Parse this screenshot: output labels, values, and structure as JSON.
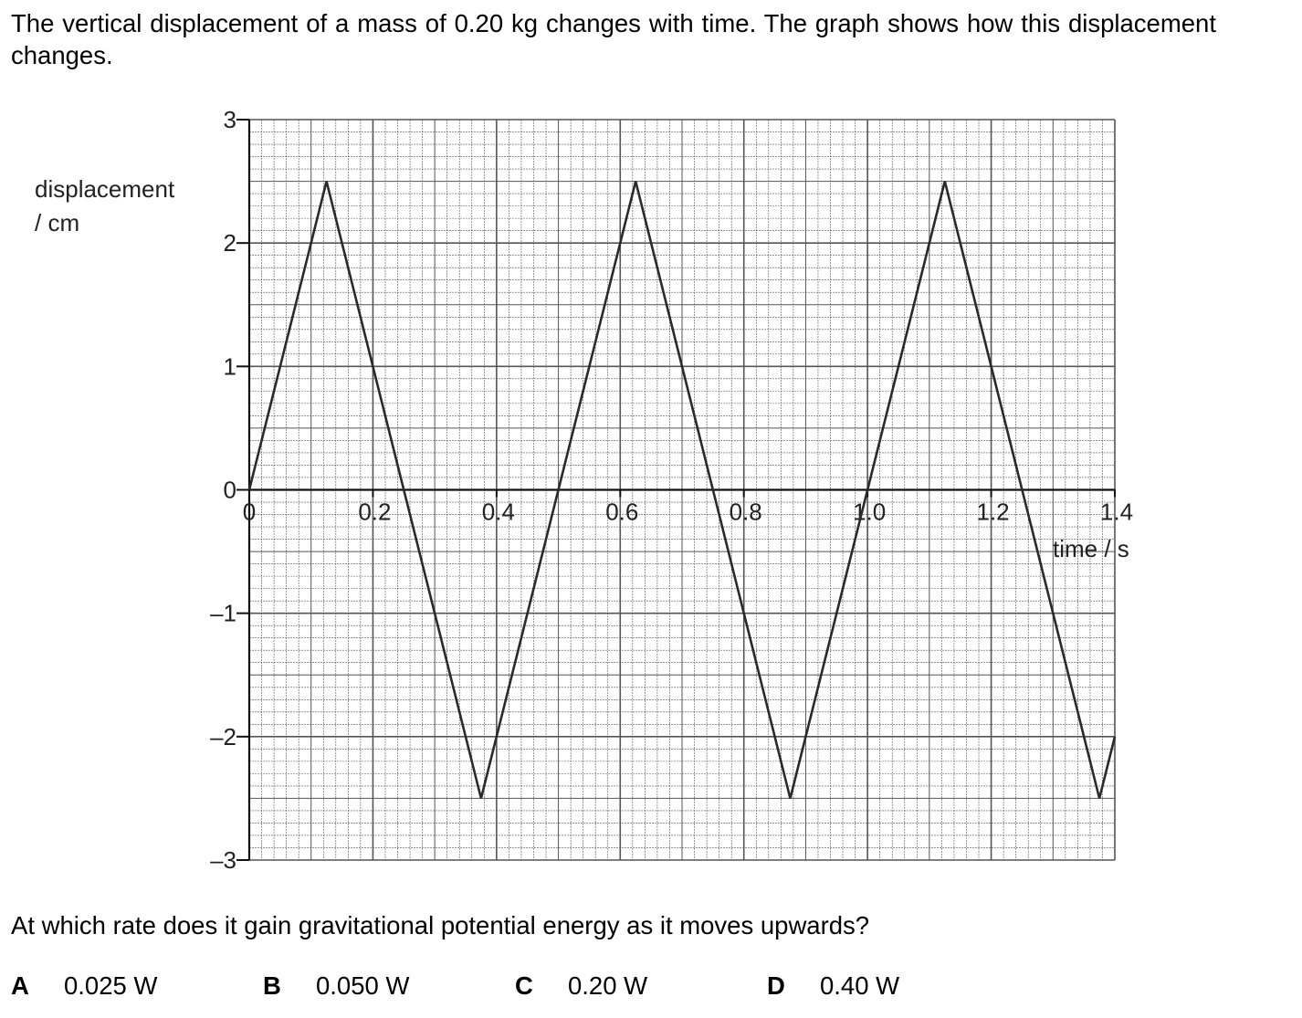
{
  "question": {
    "intro": "The vertical displacement of a mass of 0.20 kg changes with time. The graph shows how this displacement changes.",
    "prompt": "At which rate does it gain gravitational potential energy as it moves upwards?",
    "options": [
      {
        "letter": "A",
        "text": "0.025 W"
      },
      {
        "letter": "B",
        "text": "0.050 W"
      },
      {
        "letter": "C",
        "text": "0.20 W"
      },
      {
        "letter": "D",
        "text": "0.40 W"
      }
    ]
  },
  "chart_data": {
    "type": "line",
    "title": "",
    "ylabel_line1": "displacement",
    "ylabel_line2": "/ cm",
    "xlabel": "time / s",
    "xlim": [
      0,
      1.4
    ],
    "ylim": [
      -3,
      3
    ],
    "x_ticks": [
      "0",
      "0.2",
      "0.4",
      "0.6",
      "0.8",
      "1.0",
      "1.2",
      "1.4"
    ],
    "x_tick_values": [
      0,
      0.2,
      0.4,
      0.6,
      0.8,
      1.0,
      1.2,
      1.4
    ],
    "y_ticks": [
      "3",
      "2",
      "1",
      "0",
      "–1",
      "–2",
      "–3"
    ],
    "y_tick_values": [
      3,
      2,
      1,
      0,
      -1,
      -2,
      -3
    ],
    "grid": true,
    "series": [
      {
        "x": [
          0,
          0.125,
          0.375,
          0.625,
          0.875,
          1.125,
          1.375,
          1.4
        ],
        "y": [
          0,
          2.5,
          -2.5,
          2.5,
          -2.5,
          2.5,
          -2.5,
          -2.0
        ]
      }
    ],
    "colors": {
      "grid": "#555555",
      "line": "#2a2a2a",
      "axis": "#111111"
    }
  }
}
